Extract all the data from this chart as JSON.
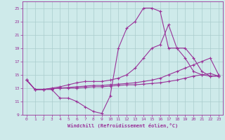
{
  "xlabel": "Windchill (Refroidissement éolien,°C)",
  "xlim": [
    -0.5,
    23.5
  ],
  "ylim": [
    9,
    26
  ],
  "yticks": [
    9,
    11,
    13,
    15,
    17,
    19,
    21,
    23,
    25
  ],
  "xticks": [
    0,
    1,
    2,
    3,
    4,
    5,
    6,
    7,
    8,
    9,
    10,
    11,
    12,
    13,
    14,
    15,
    16,
    17,
    18,
    19,
    20,
    21,
    22,
    23
  ],
  "bg_color": "#ceeaea",
  "line_color": "#993399",
  "grid_color": "#aacccc",
  "line1_x": [
    0,
    1,
    2,
    3,
    4,
    5,
    6,
    7,
    8,
    9,
    10,
    11,
    12,
    13,
    14,
    15,
    16,
    17,
    18,
    19,
    20,
    21,
    22,
    23
  ],
  "line1_y": [
    14.2,
    12.8,
    12.8,
    12.8,
    11.5,
    11.5,
    11.0,
    10.2,
    9.5,
    9.2,
    11.8,
    19.0,
    22.0,
    23.0,
    25.0,
    25.0,
    24.5,
    19.0,
    19.0,
    17.5,
    15.5,
    15.0,
    14.8,
    14.8
  ],
  "line2_x": [
    0,
    1,
    2,
    3,
    4,
    5,
    6,
    7,
    8,
    9,
    10,
    11,
    12,
    13,
    14,
    15,
    16,
    17,
    18,
    19,
    20,
    21,
    22,
    23
  ],
  "line2_y": [
    14.2,
    12.8,
    12.8,
    13.0,
    13.2,
    13.5,
    13.8,
    14.0,
    14.0,
    14.0,
    14.2,
    14.5,
    15.0,
    16.0,
    17.5,
    19.0,
    19.5,
    22.5,
    19.0,
    19.0,
    17.5,
    15.5,
    14.8,
    14.8
  ],
  "line3_x": [
    0,
    1,
    2,
    3,
    4,
    5,
    6,
    7,
    8,
    9,
    10,
    11,
    12,
    13,
    14,
    15,
    16,
    17,
    18,
    19,
    20,
    21,
    22,
    23
  ],
  "line3_y": [
    14.2,
    12.8,
    12.8,
    12.9,
    13.0,
    13.1,
    13.2,
    13.3,
    13.4,
    13.4,
    13.5,
    13.6,
    13.7,
    13.8,
    14.0,
    14.2,
    14.5,
    15.0,
    15.5,
    16.0,
    16.5,
    17.0,
    17.5,
    15.0
  ],
  "line4_x": [
    0,
    1,
    2,
    3,
    4,
    5,
    6,
    7,
    8,
    9,
    10,
    11,
    12,
    13,
    14,
    15,
    16,
    17,
    18,
    19,
    20,
    21,
    22,
    23
  ],
  "line4_y": [
    14.2,
    12.8,
    12.8,
    12.9,
    13.0,
    13.0,
    13.0,
    13.1,
    13.2,
    13.2,
    13.3,
    13.4,
    13.5,
    13.5,
    13.6,
    13.7,
    13.8,
    14.0,
    14.2,
    14.5,
    14.8,
    15.0,
    15.2,
    14.8
  ]
}
